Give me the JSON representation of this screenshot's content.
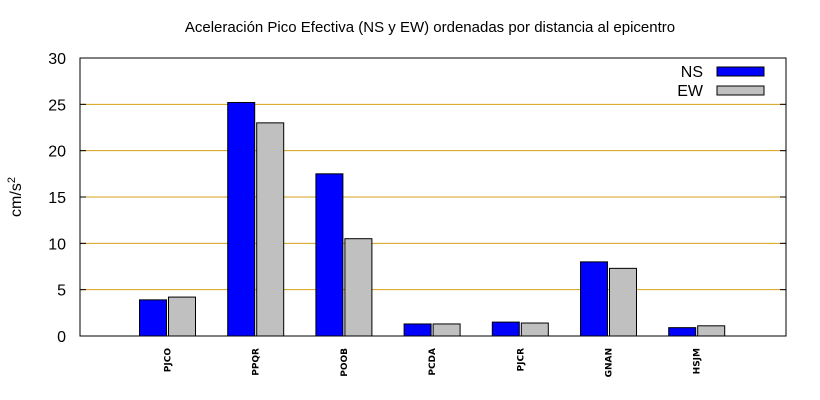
{
  "chart_data": {
    "type": "bar",
    "title": "Aceleración Pico Efectiva (NS y EW) ordenadas por distancia al epicentro",
    "xlabel": "",
    "ylabel": "cm/s",
    "ylabel_sup": "2",
    "ylim": [
      0,
      30
    ],
    "yticks": [
      "0",
      "5",
      "10",
      "15",
      "20",
      "25",
      "30"
    ],
    "grid": true,
    "grid_color": "#d4a017",
    "legend_position": "top-right",
    "categories": [
      "PJCO",
      "PPQR",
      "POOB",
      "PCDA",
      "PJCR",
      "GNAN",
      "HSJM"
    ],
    "series": [
      {
        "name": "NS",
        "color": "#0000ff",
        "values": [
          3.9,
          25.2,
          17.5,
          1.3,
          1.5,
          8.0,
          0.9
        ]
      },
      {
        "name": "EW",
        "color": "#c0c0c0",
        "values": [
          4.2,
          23.0,
          10.5,
          1.3,
          1.4,
          7.3,
          1.1
        ]
      }
    ]
  }
}
